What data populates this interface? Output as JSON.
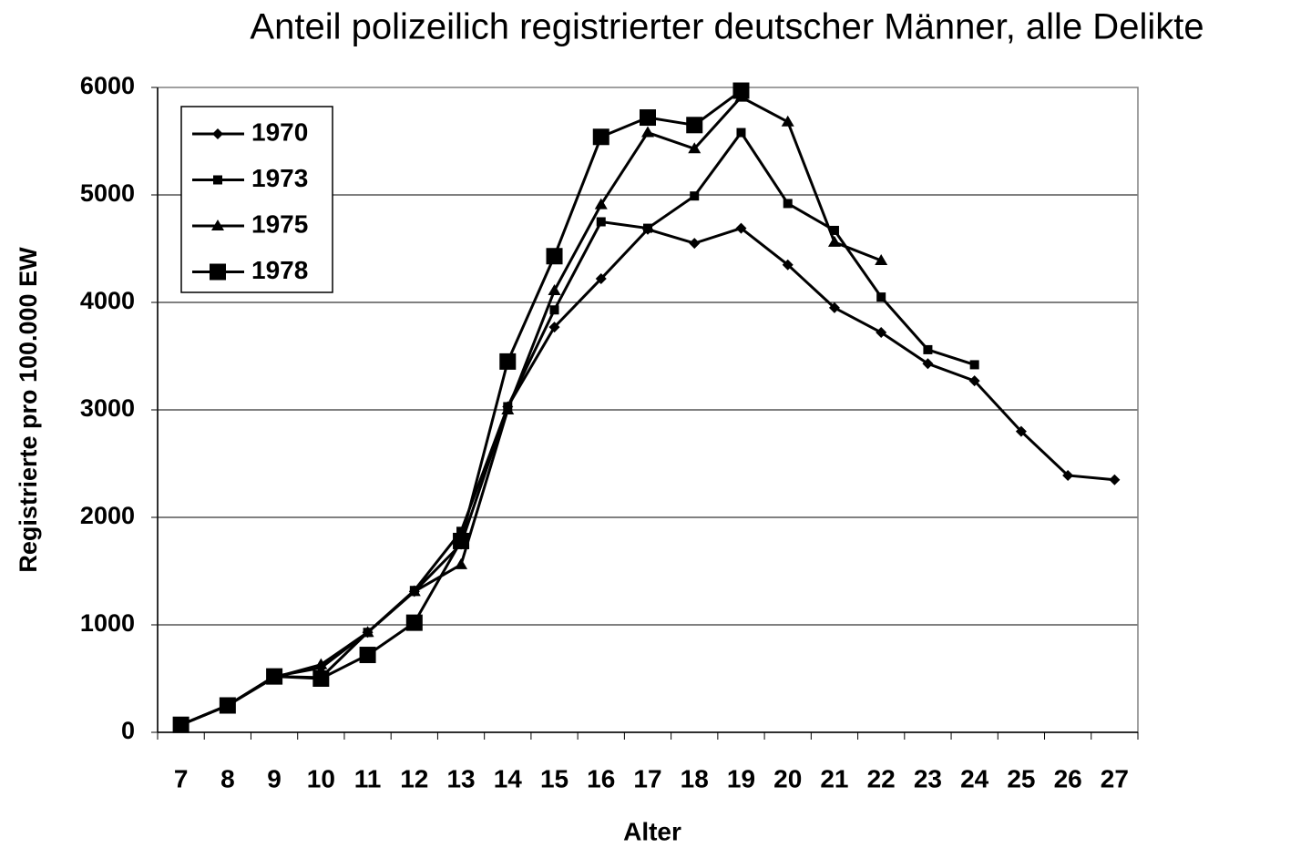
{
  "chart_data": {
    "type": "line",
    "title": "Anteil polizeilich registrierter deutscher Männer, alle Delikte",
    "x_label": "Alter",
    "y_label": "Registrierte pro 100.000 EW",
    "categories": [
      "7",
      "8",
      "9",
      "10",
      "11",
      "12",
      "13",
      "14",
      "15",
      "16",
      "17",
      "18",
      "19",
      "20",
      "21",
      "22",
      "23",
      "24",
      "25",
      "26",
      "27"
    ],
    "series": [
      {
        "name": "1970",
        "color": "#000000",
        "marker": "diamond",
        "values": [
          70,
          250,
          520,
          600,
          930,
          1310,
          1750,
          3030,
          3770,
          4220,
          4680,
          4550,
          4690,
          4350,
          3950,
          3720,
          3430,
          3270,
          2800,
          2390,
          2350
        ]
      },
      {
        "name": "1973",
        "color": "#000000",
        "marker": "square",
        "values": [
          70,
          250,
          520,
          510,
          930,
          1320,
          1870,
          3030,
          3930,
          4750,
          4690,
          4990,
          5580,
          4920,
          4670,
          4050,
          3560,
          3420,
          null,
          null,
          null
        ]
      },
      {
        "name": "1975",
        "color": "#000000",
        "marker": "triangle",
        "values": [
          70,
          250,
          510,
          630,
          930,
          1310,
          1560,
          3000,
          4110,
          4910,
          5580,
          5430,
          5910,
          5680,
          4560,
          4390,
          null,
          null,
          null,
          null,
          null
        ]
      },
      {
        "name": "1978",
        "color": "#000000",
        "marker": "big-square",
        "values": [
          70,
          250,
          520,
          500,
          720,
          1020,
          1780,
          3450,
          4430,
          5540,
          5720,
          5650,
          5970,
          null,
          null,
          null,
          null,
          null,
          null,
          null,
          null
        ]
      }
    ],
    "ylim": [
      0,
      6000
    ],
    "yticks": [
      0,
      1000,
      2000,
      3000,
      4000,
      5000,
      6000
    ],
    "grid": true,
    "legend": "upper left"
  }
}
